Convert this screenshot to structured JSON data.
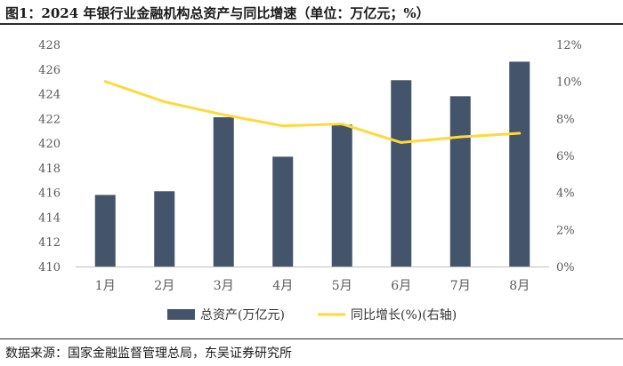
{
  "header": {
    "title": "图1：2024 年银行业金融机构总资产与同比增速（单位：万亿元；%）"
  },
  "footer": {
    "source": "数据来源：国家金融监督管理总局，东吴证券研究所"
  },
  "colors": {
    "bar": "#44546a",
    "line": "#ffd93b",
    "axis": "#bfbfbf",
    "text": "#595959"
  },
  "chart_data": {
    "type": "bar",
    "title": "2024 年银行业金融机构总资产与同比增速",
    "categories": [
      "1月",
      "2月",
      "3月",
      "4月",
      "5月",
      "6月",
      "7月",
      "8月"
    ],
    "series": [
      {
        "name": "总资产(万亿元)",
        "type": "bar",
        "axis": "left",
        "values": [
          415.8,
          416.1,
          422.1,
          418.9,
          421.5,
          425.1,
          423.8,
          426.6
        ]
      },
      {
        "name": "同比增长(%)(右轴)",
        "type": "line",
        "axis": "right",
        "values": [
          10.0,
          8.9,
          8.2,
          7.6,
          7.7,
          6.7,
          7.0,
          7.2
        ]
      }
    ],
    "y_left": {
      "min": 410,
      "max": 428,
      "step": 2,
      "ticks": [
        "410",
        "412",
        "414",
        "416",
        "418",
        "420",
        "422",
        "424",
        "426",
        "428"
      ]
    },
    "y_right": {
      "min": 0,
      "max": 12,
      "step": 2,
      "ticks": [
        "0%",
        "2%",
        "4%",
        "6%",
        "8%",
        "10%",
        "12%"
      ]
    },
    "legend": {
      "position": "bottom-center",
      "labels": [
        "总资产(万亿元)",
        "同比增长(%)(右轴)"
      ]
    },
    "grid": false
  }
}
